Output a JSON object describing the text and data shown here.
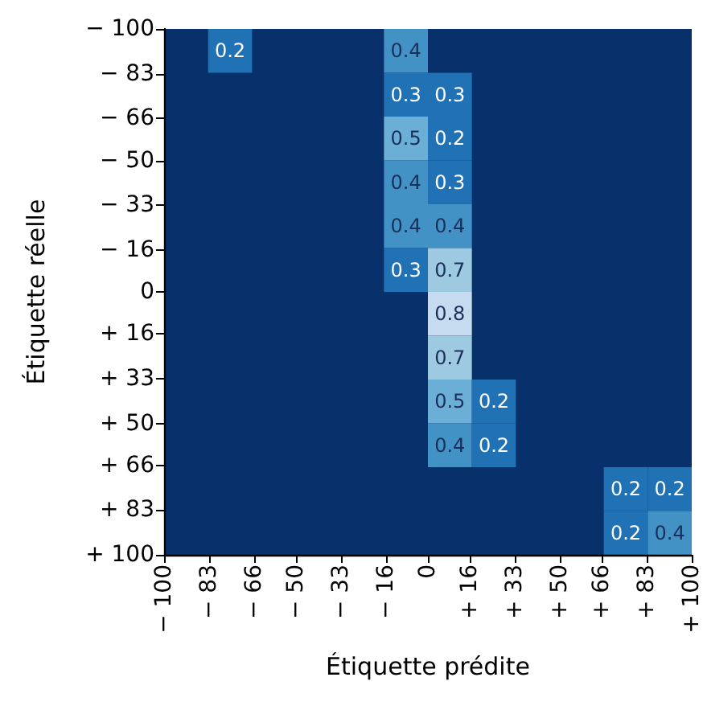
{
  "chart_data": {
    "type": "heatmap",
    "xlabel": "Étiquette prédite",
    "ylabel": "Étiquette réelle",
    "data_labels": true,
    "xlim": [
      -100,
      100
    ],
    "ylim": [
      100,
      -100
    ],
    "xticks": [
      {
        "value": -100,
        "label": "− 100"
      },
      {
        "value": -83,
        "label": "− 83"
      },
      {
        "value": -66,
        "label": "− 66"
      },
      {
        "value": -50,
        "label": "− 50"
      },
      {
        "value": -33,
        "label": "− 33"
      },
      {
        "value": -16,
        "label": "− 16"
      },
      0,
      {
        "value": 16,
        "label": "+ 16"
      },
      {
        "value": 33,
        "label": "+ 33"
      },
      {
        "value": 50,
        "label": "+ 50"
      },
      {
        "value": 66,
        "label": "+ 66"
      },
      {
        "value": 83,
        "label": "+ 83"
      },
      {
        "value": 100,
        "label": "+ 100"
      }
    ],
    "yticks": [
      {
        "value": -100,
        "label": "− 100"
      },
      {
        "value": -83,
        "label": "− 83"
      },
      {
        "value": -66,
        "label": "− 66"
      },
      {
        "value": -50,
        "label": "− 50"
      },
      {
        "value": -33,
        "label": "− 33"
      },
      {
        "value": -16,
        "label": "− 16"
      },
      0,
      {
        "value": 16,
        "label": "+ 16"
      },
      {
        "value": 33,
        "label": "+ 33"
      },
      {
        "value": 50,
        "label": "+ 50"
      },
      {
        "value": 66,
        "label": "+ 66"
      },
      {
        "value": 83,
        "label": "+ 83"
      },
      {
        "value": 100,
        "label": "+ 100"
      }
    ],
    "cells": [
      [
        null,
        0.2,
        null,
        null,
        null,
        0.4,
        null,
        null,
        null,
        null,
        null,
        null
      ],
      [
        null,
        null,
        null,
        null,
        null,
        0.3,
        0.3,
        null,
        null,
        null,
        null,
        null
      ],
      [
        null,
        null,
        null,
        null,
        null,
        0.5,
        0.2,
        null,
        null,
        null,
        null,
        null
      ],
      [
        null,
        null,
        null,
        null,
        null,
        0.4,
        0.3,
        null,
        null,
        null,
        null,
        null
      ],
      [
        null,
        null,
        null,
        null,
        null,
        0.4,
        0.4,
        null,
        null,
        null,
        null,
        null
      ],
      [
        null,
        null,
        null,
        null,
        null,
        0.3,
        0.7,
        null,
        null,
        null,
        null,
        null
      ],
      [
        null,
        null,
        null,
        null,
        null,
        null,
        0.8,
        null,
        null,
        null,
        null,
        null
      ],
      [
        null,
        null,
        null,
        null,
        null,
        null,
        0.7,
        null,
        null,
        null,
        null,
        null
      ],
      [
        null,
        null,
        null,
        null,
        null,
        null,
        0.5,
        0.2,
        null,
        null,
        null,
        null
      ],
      [
        null,
        null,
        null,
        null,
        null,
        null,
        0.4,
        0.2,
        null,
        null,
        null,
        null
      ],
      [
        null,
        null,
        null,
        null,
        null,
        null,
        null,
        null,
        null,
        null,
        0.2,
        0.2
      ],
      [
        null,
        null,
        null,
        null,
        null,
        null,
        null,
        null,
        null,
        null,
        0.2,
        0.4
      ]
    ]
  }
}
